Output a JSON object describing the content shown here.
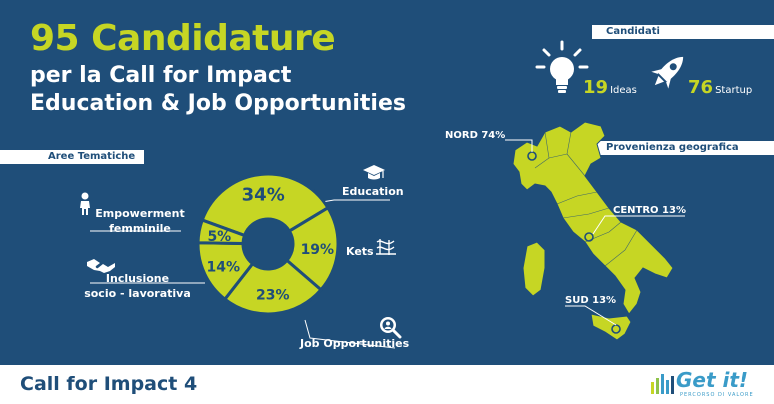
{
  "header": {
    "count_title": "95 Candidature",
    "line2": "per la Call for Impact",
    "line3": "Education & Job Opportunities"
  },
  "sections": {
    "aree": "Aree Tematiche",
    "candidati": "Candidati",
    "provenienza": "Provenienza geografica"
  },
  "candidati": {
    "ideas_value": "19",
    "ideas_label": "Ideas",
    "startup_value": "76",
    "startup_label": "Startup"
  },
  "chart_data": {
    "type": "pie",
    "title": "Aree Tematiche",
    "slices": [
      {
        "label": "Education",
        "value": 34,
        "display": "34%"
      },
      {
        "label": "Kets",
        "value": 19,
        "display": "19%"
      },
      {
        "label": "Job Opportunities",
        "value": 23,
        "display": "23%"
      },
      {
        "label": "Inclusione socio - lavorativa",
        "value": 14,
        "display": "14%"
      },
      {
        "label": "Empowerment femminile",
        "value": 5,
        "display": "5%"
      }
    ]
  },
  "labels": {
    "education": "Education",
    "kets": "Kets",
    "job": "Job Opportunities",
    "inclusione_1": "Inclusione",
    "inclusione_2": "socio - lavorativa",
    "empower_1": "Empowerment",
    "empower_2": "femminile"
  },
  "map": {
    "nord": "NORD 74%",
    "centro": "CENTRO 13%",
    "sud": "SUD 13%"
  },
  "footer": {
    "title": "Call for Impact 4",
    "logo": "Get it!",
    "logo_sub": "PERCORSO DI VALORE"
  },
  "colors": {
    "background": "#1f4e79",
    "accent": "#c6d624",
    "white": "#ffffff"
  }
}
